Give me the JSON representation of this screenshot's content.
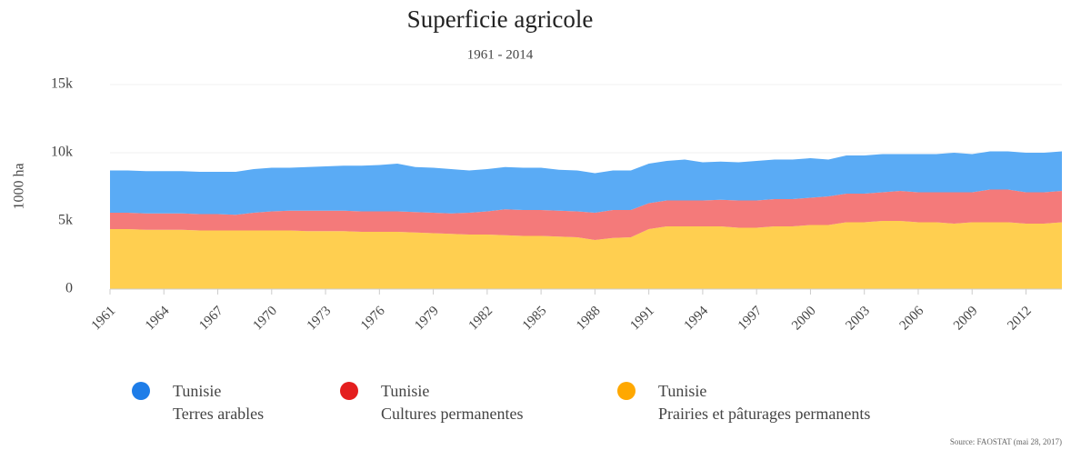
{
  "chart_data": {
    "type": "stacked_area",
    "title": "Superficie agricole",
    "subtitle": "1961 - 2014",
    "y_label": "1000 ha",
    "source": "Source: FAOSTAT (mai 28, 2017)",
    "x": [
      1961,
      1962,
      1963,
      1964,
      1965,
      1966,
      1967,
      1968,
      1969,
      1970,
      1971,
      1972,
      1973,
      1974,
      1975,
      1976,
      1977,
      1978,
      1979,
      1980,
      1981,
      1982,
      1983,
      1984,
      1985,
      1986,
      1987,
      1988,
      1989,
      1990,
      1991,
      1992,
      1993,
      1994,
      1995,
      1996,
      1997,
      1998,
      1999,
      2000,
      2001,
      2002,
      2003,
      2004,
      2005,
      2006,
      2007,
      2008,
      2009,
      2010,
      2011,
      2012,
      2013,
      2014
    ],
    "xlim": [
      1961,
      2014
    ],
    "xticks": [
      1961,
      1964,
      1967,
      1970,
      1973,
      1976,
      1979,
      1982,
      1985,
      1988,
      1991,
      1994,
      1997,
      2000,
      2003,
      2006,
      2009,
      2012
    ],
    "ylim": [
      0,
      15000
    ],
    "yticks": [
      0,
      {
        "value": 5000,
        "label": "5k"
      },
      {
        "value": 10000,
        "label": "10k"
      },
      {
        "value": 15000,
        "label": "15k"
      }
    ],
    "grid": true,
    "series": [
      {
        "name": "Tunisie",
        "label": "Prairies et pâturages permanents",
        "color": "#ffcf50",
        "legend_color": "#ffa800",
        "values": [
          4400,
          4400,
          4350,
          4350,
          4350,
          4300,
          4300,
          4300,
          4300,
          4300,
          4300,
          4250,
          4250,
          4250,
          4200,
          4200,
          4200,
          4150,
          4100,
          4050,
          4000,
          4000,
          3950,
          3900,
          3900,
          3850,
          3800,
          3600,
          3750,
          3800,
          4400,
          4600,
          4600,
          4600,
          4600,
          4500,
          4500,
          4600,
          4600,
          4700,
          4700,
          4900,
          4900,
          5000,
          5000,
          4900,
          4900,
          4800,
          4900,
          4900,
          4900,
          4800,
          4800,
          4900
        ]
      },
      {
        "name": "Tunisie",
        "label": "Cultures permanentes",
        "color": "#f47a7a",
        "legend_color": "#e41e1e",
        "values": [
          1200,
          1200,
          1200,
          1200,
          1200,
          1200,
          1200,
          1150,
          1300,
          1400,
          1450,
          1500,
          1500,
          1500,
          1500,
          1500,
          1500,
          1500,
          1500,
          1500,
          1600,
          1700,
          1900,
          1900,
          1900,
          1900,
          1900,
          2000,
          2050,
          2000,
          1900,
          1900,
          1900,
          1900,
          1950,
          2000,
          2000,
          2000,
          2000,
          2000,
          2100,
          2100,
          2100,
          2100,
          2200,
          2200,
          2200,
          2300,
          2200,
          2400,
          2400,
          2300,
          2300,
          2300
        ]
      },
      {
        "name": "Tunisie",
        "label": "Terres arables",
        "color": "#5aabf5",
        "legend_color": "#1e7de8",
        "values": [
          3100,
          3100,
          3100,
          3100,
          3100,
          3100,
          3100,
          3150,
          3200,
          3200,
          3150,
          3200,
          3250,
          3300,
          3350,
          3400,
          3500,
          3300,
          3300,
          3250,
          3100,
          3100,
          3100,
          3100,
          3100,
          3000,
          3000,
          2900,
          2900,
          2900,
          2900,
          2900,
          3000,
          2800,
          2800,
          2800,
          2900,
          2900,
          2900,
          2900,
          2700,
          2800,
          2800,
          2800,
          2700,
          2800,
          2800,
          2900,
          2800,
          2800,
          2800,
          2900,
          2900,
          2900
        ]
      }
    ],
    "legend_order": [
      2,
      1,
      0
    ]
  }
}
